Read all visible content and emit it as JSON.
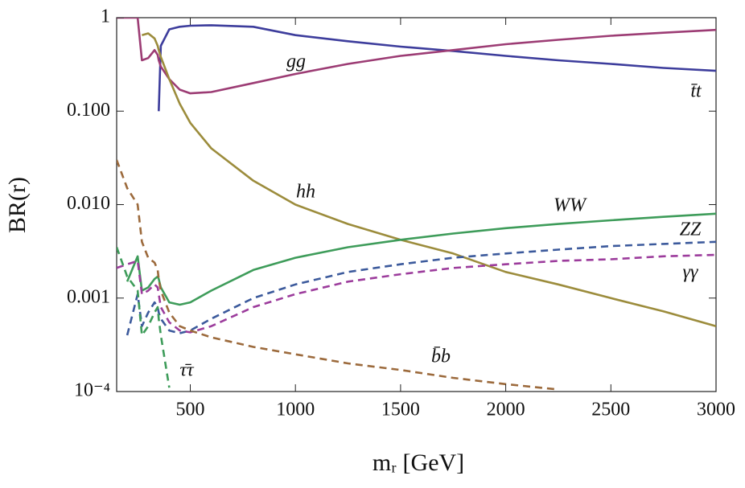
{
  "chart_data": {
    "type": "line",
    "x_label": "mᵣ [GeV]",
    "y_label": "BR(r)",
    "log_y": true,
    "grid": false,
    "xlim": [
      150,
      3000
    ],
    "xticks": [
      500,
      1000,
      1500,
      2000,
      2500,
      3000
    ],
    "ylim": [
      0.0001,
      1
    ],
    "yticks": [
      {
        "value": 0.0001,
        "label": "10⁻⁴"
      },
      {
        "value": 0.001,
        "label": "0.001"
      },
      {
        "value": 0.01,
        "label": "0.010"
      },
      {
        "value": 0.1,
        "label": "0.100"
      },
      1
    ],
    "x": [
      150,
      200,
      250,
      270,
      300,
      330,
      345,
      350,
      360,
      400,
      450,
      500,
      600,
      800,
      1000,
      1250,
      1500,
      1750,
      2000,
      2250,
      2500,
      2750,
      3000
    ],
    "series": [
      {
        "name": "t̄t",
        "color": "#3d3d9c",
        "dashed": false,
        "values": [
          null,
          null,
          null,
          null,
          null,
          null,
          null,
          0.1,
          0.5,
          0.75,
          0.8,
          0.82,
          0.83,
          0.8,
          0.65,
          0.56,
          0.49,
          0.44,
          0.39,
          0.35,
          0.32,
          0.29,
          0.27
        ]
      },
      {
        "name": "gg",
        "color": "#9c3c74",
        "dashed": false,
        "values": [
          1,
          1,
          1,
          0.35,
          0.37,
          0.45,
          0.4,
          0.35,
          0.3,
          0.22,
          0.17,
          0.155,
          0.16,
          0.2,
          0.25,
          0.32,
          0.39,
          0.45,
          0.52,
          0.58,
          0.64,
          0.69,
          0.74
        ]
      },
      {
        "name": "hh",
        "color": "#9c8c3c",
        "dashed": false,
        "values": [
          null,
          null,
          null,
          0.65,
          0.68,
          0.6,
          0.5,
          0.45,
          0.38,
          0.22,
          0.12,
          0.075,
          0.04,
          0.018,
          0.01,
          0.0062,
          0.0042,
          0.003,
          0.0019,
          0.0014,
          0.001,
          0.00072,
          0.0005
        ]
      },
      {
        "name": "WW",
        "color": "#3e9c5a",
        "dashed": false,
        "values": [
          null,
          0.0015,
          0.0028,
          0.0012,
          0.0013,
          0.0016,
          0.0017,
          0.0016,
          0.0013,
          0.0009,
          0.00085,
          0.0009,
          0.0012,
          0.002,
          0.0027,
          0.0035,
          0.0042,
          0.0049,
          0.0056,
          0.0062,
          0.0068,
          0.0074,
          0.008
        ]
      },
      {
        "name": "ZZ",
        "color": "#3c5a9c",
        "dashed": true,
        "values": [
          null,
          0.0004,
          0.0011,
          0.0005,
          0.0007,
          0.0009,
          0.0008,
          0.0007,
          0.0006,
          0.00045,
          0.00042,
          0.00045,
          0.0006,
          0.001,
          0.0014,
          0.0019,
          0.0023,
          0.0027,
          0.003,
          0.0033,
          0.0036,
          0.0038,
          0.004
        ]
      },
      {
        "name": "γγ",
        "color": "#9c3c9c",
        "dashed": true,
        "values": [
          0.0021,
          0.0023,
          0.0025,
          0.0011,
          0.0012,
          0.0014,
          0.0013,
          0.0011,
          0.0008,
          0.00055,
          0.00045,
          0.00043,
          0.0005,
          0.0008,
          0.0011,
          0.0015,
          0.0018,
          0.0021,
          0.0023,
          0.0025,
          0.0026,
          0.0028,
          0.0029
        ]
      },
      {
        "name": "b̄b",
        "color": "#9c6a3c",
        "dashed": true,
        "values": [
          0.03,
          0.015,
          0.01,
          0.004,
          0.0027,
          0.0024,
          0.002,
          0.0016,
          0.0012,
          0.0007,
          0.0005,
          0.00045,
          0.00038,
          0.0003,
          0.00025,
          0.0002,
          0.00017,
          0.00014,
          0.00012,
          0.000105,
          null,
          null,
          null
        ]
      },
      {
        "name": "τ̄τ",
        "color": "#3e9c5a",
        "dashed": true,
        "values": [
          0.0035,
          0.0017,
          0.0012,
          0.0004,
          0.0005,
          0.0007,
          0.0008,
          0.0006,
          0.0004,
          0.00011,
          null,
          null,
          null,
          null,
          null,
          null,
          null,
          null,
          null,
          null,
          null,
          null,
          null
        ]
      }
    ]
  }
}
